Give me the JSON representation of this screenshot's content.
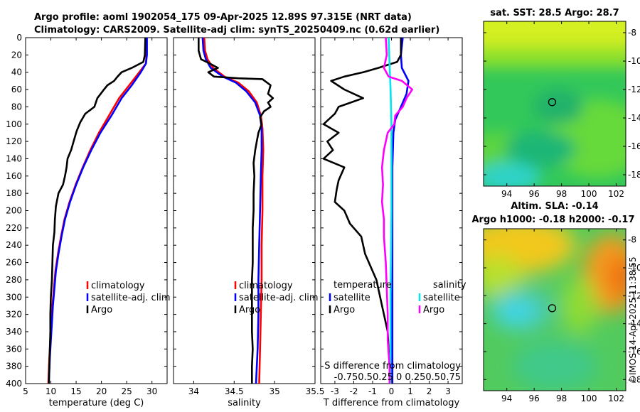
{
  "titles": {
    "line1": "Argo profile: aoml 1902054_175 09-Apr-2025 12.89S 97.315E (NRT data)",
    "line2": "Climatology: CARS2009. Satellite-adj clim: synTS_20250409.nc (0.62d earlier)",
    "sst": "sat. SST: 28.5 Argo: 28.7",
    "sla1": "Altim. SLA: -0.14",
    "sla2": "Argo h1000: -0.18 h2000: -0.17",
    "credit": "©IMOS 14-Apr-2025 11:38:55"
  },
  "colors": {
    "clim": "#ff0000",
    "sat": "#0000ff",
    "argo": "#000000",
    "sal_sat": "#00e5ee",
    "sal_argo": "#ff00ff"
  },
  "depth_ticks": [
    "0",
    "20",
    "40",
    "60",
    "80",
    "100",
    "120",
    "140",
    "160",
    "180",
    "200",
    "220",
    "240",
    "260",
    "280",
    "300",
    "320",
    "340",
    "360",
    "380",
    "400"
  ],
  "chart_data": [
    {
      "type": "line",
      "xlabel": "temperature (deg C)",
      "ylabel": "depth",
      "xlim": [
        5,
        33
      ],
      "ylim": [
        400,
        0
      ],
      "xticks": [
        "5",
        "10",
        "15",
        "20",
        "25",
        "30"
      ],
      "legend": [
        "climatology",
        "satellite-adj. clim",
        "Argo"
      ],
      "series": [
        {
          "name": "climatology",
          "color": "#ff0000",
          "points": [
            [
              28.9,
              0
            ],
            [
              28.9,
              20
            ],
            [
              28.8,
              30
            ],
            [
              27.5,
              40
            ],
            [
              25.5,
              55
            ],
            [
              23.5,
              70
            ],
            [
              21.5,
              90
            ],
            [
              19.5,
              110
            ],
            [
              17.8,
              130
            ],
            [
              16.3,
              150
            ],
            [
              14.9,
              170
            ],
            [
              13.7,
              190
            ],
            [
              12.7,
              210
            ],
            [
              12.0,
              230
            ],
            [
              11.4,
              250
            ],
            [
              10.9,
              270
            ],
            [
              10.6,
              290
            ],
            [
              10.3,
              310
            ],
            [
              10.1,
              330
            ],
            [
              9.9,
              350
            ],
            [
              9.7,
              370
            ],
            [
              9.6,
              385
            ],
            [
              9.5,
              400
            ]
          ]
        },
        {
          "name": "satellite-adj. clim",
          "color": "#0000ff",
          "points": [
            [
              29.0,
              0
            ],
            [
              29.0,
              20
            ],
            [
              28.8,
              30
            ],
            [
              27.8,
              40
            ],
            [
              26.0,
              55
            ],
            [
              24.0,
              70
            ],
            [
              22.0,
              90
            ],
            [
              19.8,
              110
            ],
            [
              18.0,
              130
            ],
            [
              16.4,
              150
            ],
            [
              15.0,
              170
            ],
            [
              13.8,
              190
            ],
            [
              12.8,
              210
            ],
            [
              12.1,
              230
            ],
            [
              11.5,
              250
            ],
            [
              11.0,
              270
            ],
            [
              10.7,
              290
            ],
            [
              10.4,
              310
            ],
            [
              10.2,
              330
            ],
            [
              10.0,
              350
            ],
            [
              9.8,
              370
            ],
            [
              9.7,
              385
            ],
            [
              9.6,
              400
            ]
          ]
        },
        {
          "name": "Argo",
          "color": "#000000",
          "points": [
            [
              28.7,
              0
            ],
            [
              28.6,
              20
            ],
            [
              28.3,
              28
            ],
            [
              26.0,
              35
            ],
            [
              24.0,
              40
            ],
            [
              23.2,
              45
            ],
            [
              22.5,
              50
            ],
            [
              21.2,
              55
            ],
            [
              20.5,
              60
            ],
            [
              19.2,
              70
            ],
            [
              18.6,
              80
            ],
            [
              16.8,
              88
            ],
            [
              15.8,
              98
            ],
            [
              15.1,
              108
            ],
            [
              14.5,
              120
            ],
            [
              14.0,
              130
            ],
            [
              13.3,
              140
            ],
            [
              13.1,
              150
            ],
            [
              12.8,
              160
            ],
            [
              12.4,
              170
            ],
            [
              11.5,
              180
            ],
            [
              11.0,
              195
            ],
            [
              10.8,
              210
            ],
            [
              10.7,
              225
            ],
            [
              10.4,
              240
            ],
            [
              10.3,
              260
            ],
            [
              10.2,
              280
            ],
            [
              10.0,
              300
            ],
            [
              9.9,
              320
            ],
            [
              9.9,
              340
            ],
            [
              9.8,
              360
            ],
            [
              9.7,
              380
            ],
            [
              9.6,
              400
            ]
          ]
        }
      ]
    },
    {
      "type": "line",
      "xlabel": "salinity",
      "ylabel": "depth",
      "xlim": [
        33.75,
        35.5
      ],
      "ylim": [
        400,
        0
      ],
      "xticks": [
        "34",
        "34.5",
        "35",
        "35.5"
      ],
      "legend": [
        "climatology",
        "satellite-adj. clim",
        "Argo"
      ],
      "series": [
        {
          "name": "climatology",
          "color": "#ff0000",
          "points": [
            [
              34.13,
              0
            ],
            [
              34.14,
              15
            ],
            [
              34.17,
              25
            ],
            [
              34.24,
              35
            ],
            [
              34.38,
              45
            ],
            [
              34.55,
              52
            ],
            [
              34.68,
              62
            ],
            [
              34.78,
              75
            ],
            [
              34.83,
              90
            ],
            [
              34.85,
              105
            ],
            [
              34.86,
              130
            ],
            [
              34.85,
              160
            ],
            [
              34.85,
              200
            ],
            [
              34.84,
              240
            ],
            [
              34.84,
              280
            ],
            [
              34.83,
              320
            ],
            [
              34.82,
              360
            ],
            [
              34.81,
              400
            ]
          ]
        },
        {
          "name": "satellite-adj. clim",
          "color": "#0000ff",
          "points": [
            [
              34.11,
              0
            ],
            [
              34.12,
              15
            ],
            [
              34.15,
              25
            ],
            [
              34.21,
              35
            ],
            [
              34.36,
              45
            ],
            [
              34.52,
              52
            ],
            [
              34.65,
              62
            ],
            [
              34.76,
              75
            ],
            [
              34.82,
              90
            ],
            [
              34.84,
              105
            ],
            [
              34.84,
              130
            ],
            [
              34.83,
              160
            ],
            [
              34.82,
              200
            ],
            [
              34.81,
              240
            ],
            [
              34.8,
              280
            ],
            [
              34.8,
              320
            ],
            [
              34.79,
              360
            ],
            [
              34.77,
              400
            ]
          ]
        },
        {
          "name": "Argo",
          "color": "#000000",
          "points": [
            [
              34.06,
              0
            ],
            [
              34.06,
              15
            ],
            [
              34.09,
              25
            ],
            [
              34.2,
              30
            ],
            [
              34.3,
              35
            ],
            [
              34.18,
              40
            ],
            [
              34.25,
              45
            ],
            [
              34.55,
              47
            ],
            [
              34.85,
              48
            ],
            [
              34.95,
              55
            ],
            [
              34.92,
              65
            ],
            [
              34.98,
              70
            ],
            [
              34.92,
              75
            ],
            [
              34.95,
              80
            ],
            [
              34.87,
              85
            ],
            [
              34.82,
              92
            ],
            [
              34.84,
              100
            ],
            [
              34.8,
              110
            ],
            [
              34.78,
              120
            ],
            [
              34.76,
              130
            ],
            [
              34.74,
              145
            ],
            [
              34.75,
              160
            ],
            [
              34.74,
              180
            ],
            [
              34.74,
              200
            ],
            [
              34.73,
              220
            ],
            [
              34.73,
              240
            ],
            [
              34.73,
              260
            ],
            [
              34.72,
              280
            ],
            [
              34.72,
              300
            ],
            [
              34.72,
              320
            ],
            [
              34.72,
              340
            ],
            [
              34.73,
              360
            ],
            [
              34.72,
              380
            ],
            [
              34.72,
              400
            ]
          ]
        }
      ]
    },
    {
      "type": "line",
      "xlabel": "T difference from climatology",
      "xlabel_top_line1": "S difference from climatology",
      "xlabel_top_line2": "-0.750.50.25  0  0.250.50.75",
      "ylabel": "depth",
      "xlim": [
        -3.75,
        3.75
      ],
      "ylim": [
        400,
        0
      ],
      "xticks": [
        "-3",
        "-2",
        "-1",
        "0",
        "1",
        "2",
        "3"
      ],
      "legend_temperature_header": "temperature",
      "legend_salinity_header": "salinity",
      "legend": [
        "satellite",
        "Argo",
        "satellite",
        "Argo"
      ],
      "series": [
        {
          "name": "temperature satellite",
          "color": "#0000ff",
          "points": [
            [
              0.6,
              0
            ],
            [
              0.5,
              20
            ],
            [
              0.55,
              35
            ],
            [
              0.9,
              50
            ],
            [
              0.8,
              65
            ],
            [
              0.5,
              80
            ],
            [
              0.2,
              95
            ],
            [
              0.1,
              110
            ],
            [
              0.05,
              150
            ],
            [
              0.05,
              200
            ],
            [
              0.05,
              250
            ],
            [
              0.05,
              300
            ],
            [
              0.05,
              350
            ],
            [
              0.05,
              400
            ]
          ]
        },
        {
          "name": "temperature Argo",
          "color": "#000000",
          "points": [
            [
              0.5,
              0
            ],
            [
              0.5,
              20
            ],
            [
              0.3,
              28
            ],
            [
              -0.7,
              35
            ],
            [
              -1.5,
              40
            ],
            [
              -2.5,
              45
            ],
            [
              -3.2,
              50
            ],
            [
              -2.5,
              60
            ],
            [
              -1.5,
              70
            ],
            [
              -2.8,
              80
            ],
            [
              -3.0,
              88
            ],
            [
              -3.6,
              100
            ],
            [
              -2.8,
              110
            ],
            [
              -3.4,
              120
            ],
            [
              -3.1,
              130
            ],
            [
              -3.6,
              140
            ],
            [
              -2.5,
              150
            ],
            [
              -2.8,
              165
            ],
            [
              -2.9,
              175
            ],
            [
              -3.0,
              190
            ],
            [
              -2.5,
              200
            ],
            [
              -2.2,
              215
            ],
            [
              -1.6,
              230
            ],
            [
              -1.4,
              250
            ],
            [
              -0.8,
              280
            ],
            [
              -0.6,
              300
            ],
            [
              -0.4,
              320
            ],
            [
              -0.2,
              340
            ],
            [
              -0.15,
              360
            ],
            [
              -0.1,
              380
            ],
            [
              0.0,
              400
            ]
          ]
        },
        {
          "name": "salinity satellite",
          "color": "#00e5ee",
          "points": [
            [
              -0.15,
              0
            ],
            [
              -0.1,
              30
            ],
            [
              -0.05,
              60
            ],
            [
              0.0,
              100
            ],
            [
              0.0,
              150
            ],
            [
              0.0,
              200
            ],
            [
              -0.05,
              300
            ],
            [
              -0.05,
              400
            ]
          ]
        },
        {
          "name": "salinity Argo",
          "color": "#ff00ff",
          "points": [
            [
              -0.3,
              0
            ],
            [
              -0.25,
              20
            ],
            [
              -0.4,
              35
            ],
            [
              -0.15,
              45
            ],
            [
              0.55,
              50
            ],
            [
              1.1,
              60
            ],
            [
              0.8,
              70
            ],
            [
              0.6,
              80
            ],
            [
              0.2,
              90
            ],
            [
              0.15,
              100
            ],
            [
              -0.2,
              110
            ],
            [
              -0.4,
              130
            ],
            [
              -0.5,
              150
            ],
            [
              -0.45,
              170
            ],
            [
              -0.5,
              190
            ],
            [
              -0.4,
              210
            ],
            [
              -0.4,
              230
            ],
            [
              -0.3,
              260
            ],
            [
              -0.25,
              290
            ],
            [
              -0.2,
              320
            ],
            [
              -0.2,
              350
            ],
            [
              -0.1,
              380
            ],
            [
              -0.1,
              400
            ]
          ]
        }
      ]
    },
    {
      "type": "heatmap",
      "title": "sat. SST: 28.5 Argo: 28.7",
      "xticks": [
        "94",
        "96",
        "98",
        "100",
        "102"
      ],
      "yticks": [
        "-8",
        "-10",
        "-12",
        "-14",
        "-16",
        "-18"
      ],
      "xlim": [
        92.3,
        102.7
      ],
      "ylim": [
        -18.8,
        -7.2
      ],
      "marker": {
        "lon": 97.315,
        "lat": -12.89
      }
    },
    {
      "type": "heatmap",
      "title": "Altim. SLA: -0.14",
      "xticks": [
        "94",
        "96",
        "98",
        "100",
        "102"
      ],
      "yticks": [
        "-8",
        "-10",
        "-12",
        "-14",
        "-16",
        "-18"
      ],
      "xlim": [
        92.3,
        102.7
      ],
      "ylim": [
        -18.8,
        -7.2
      ],
      "marker": {
        "lon": 97.315,
        "lat": -12.89
      }
    }
  ]
}
